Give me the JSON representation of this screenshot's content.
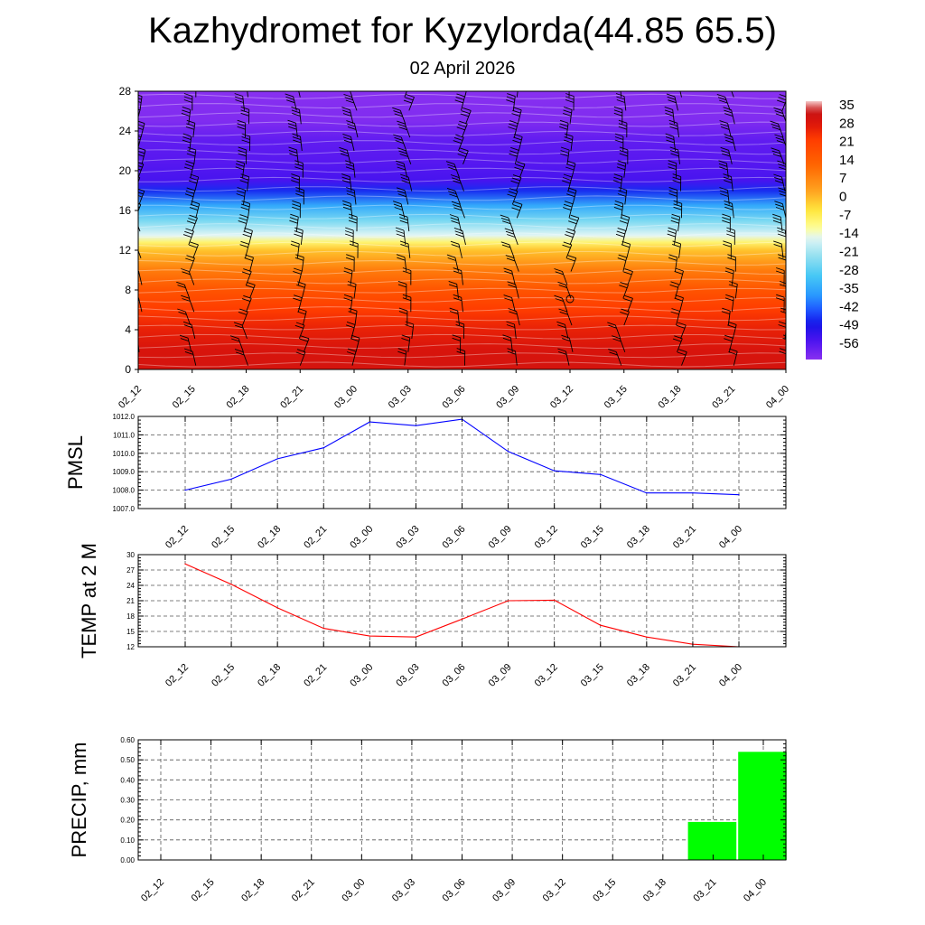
{
  "title": "Kazhydromet for Kyzylorda(44.85 65.5)",
  "subtitle": "02 April 2026",
  "chart_data": [
    {
      "type": "heatmap",
      "name": "temperature-wind-cross-section",
      "x": [
        "02_12",
        "02_15",
        "02_18",
        "02_21",
        "03_00",
        "03_03",
        "03_06",
        "03_09",
        "03_12",
        "03_15",
        "03_18",
        "03_21",
        "04_00"
      ],
      "y_ticks": [
        0,
        4,
        8,
        12,
        16,
        20,
        24,
        28
      ],
      "ylim": [
        0,
        28
      ],
      "colorbar_labels": [
        "35",
        "28",
        "21",
        "14",
        "7",
        "0",
        "-7",
        "-14",
        "-21",
        "-28",
        "-35",
        "-42",
        "-49",
        "-56"
      ],
      "colorbar_range": [
        -63,
        39
      ],
      "levels_temperature": [
        {
          "y": 0,
          "v": 32
        },
        {
          "y": 2,
          "v": 31
        },
        {
          "y": 4,
          "v": 28
        },
        {
          "y": 6,
          "v": 24
        },
        {
          "y": 8,
          "v": 18
        },
        {
          "y": 10,
          "v": 10
        },
        {
          "y": 12,
          "v": 0
        },
        {
          "y": 12.8,
          "v": -8
        },
        {
          "y": 13.5,
          "v": -15
        },
        {
          "y": 15,
          "v": -25
        },
        {
          "y": 16.5,
          "v": -35
        },
        {
          "y": 18,
          "v": -47
        },
        {
          "y": 19,
          "v": -55
        },
        {
          "y": 21,
          "v": -57
        },
        {
          "y": 23,
          "v": -58
        },
        {
          "y": 25,
          "v": -62
        },
        {
          "y": 28,
          "v": -63
        }
      ],
      "grid": false
    },
    {
      "type": "line",
      "ylabel": "PMSL",
      "x": [
        "02_12",
        "02_15",
        "02_18",
        "02_21",
        "03_00",
        "03_03",
        "03_06",
        "03_09",
        "03_12",
        "03_15",
        "03_18",
        "03_21",
        "04_00"
      ],
      "series": [
        {
          "values": [
            1008.0,
            1008.6,
            1009.7,
            1010.3,
            1011.7,
            1011.5,
            1011.85,
            1010.1,
            1009.05,
            1008.85,
            1007.85,
            1007.85,
            1007.75
          ],
          "color": "#0000ff"
        }
      ],
      "ylim": [
        1007.0,
        1012.0
      ],
      "y_ticks": [
        "1007.0",
        "1008.0",
        "1009.0",
        "1010.0",
        "1011.0",
        "1012.0"
      ],
      "grid": true
    },
    {
      "type": "line",
      "ylabel": "TEMP at 2 M",
      "x": [
        "02_12",
        "02_15",
        "02_18",
        "02_21",
        "03_00",
        "03_03",
        "03_06",
        "03_09",
        "03_12",
        "03_15",
        "03_18",
        "03_21",
        "04_00"
      ],
      "series": [
        {
          "values": [
            28.2,
            24.2,
            19.6,
            15.6,
            14.1,
            13.9,
            17.4,
            21.0,
            21.1,
            16.2,
            13.9,
            12.5,
            12.0
          ],
          "color": "#ff0000"
        }
      ],
      "ylim": [
        12,
        30
      ],
      "y_ticks": [
        "12",
        "15",
        "18",
        "21",
        "24",
        "27",
        "30"
      ],
      "grid": true
    },
    {
      "type": "bar",
      "ylabel": "PRECIP, mm",
      "x": [
        "02_12",
        "02_15",
        "02_18",
        "02_21",
        "03_00",
        "03_03",
        "03_06",
        "03_09",
        "03_12",
        "03_15",
        "03_18",
        "03_21",
        "04_00"
      ],
      "values": [
        0,
        0,
        0,
        0,
        0,
        0,
        0,
        0,
        0,
        0,
        0,
        0.19,
        0.54
      ],
      "ylim": [
        0,
        0.6
      ],
      "y_ticks": [
        "0.00",
        "0.10",
        "0.20",
        "0.30",
        "0.40",
        "0.50",
        "0.60"
      ],
      "bar_color": "#00ff00",
      "grid": true
    }
  ]
}
